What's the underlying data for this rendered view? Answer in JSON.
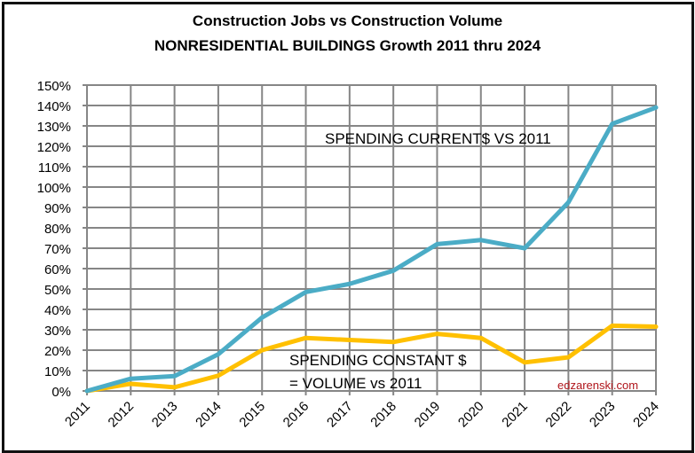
{
  "chart_data": {
    "type": "line",
    "title": "Construction Jobs vs Construction Volume",
    "subtitle": "NONRESIDENTIAL BUILDINGS Growth 2011 thru 2024",
    "xlabel": "",
    "ylabel": "",
    "x": [
      "2011",
      "2012",
      "2013",
      "2014",
      "2015",
      "2016",
      "2017",
      "2018",
      "2019",
      "2020",
      "2021",
      "2022",
      "2023",
      "2024"
    ],
    "ylim": [
      0,
      150
    ],
    "yticks": [
      "0%",
      "10%",
      "20%",
      "30%",
      "40%",
      "50%",
      "60%",
      "70%",
      "80%",
      "90%",
      "100%",
      "110%",
      "120%",
      "130%",
      "140%",
      "150%"
    ],
    "grid": true,
    "series": [
      {
        "name": "SPENDING CURRENT$ VS 2011",
        "color": "#4bacc6",
        "values": [
          0,
          6,
          7.3,
          18,
          36,
          48.5,
          52.5,
          59,
          72,
          74,
          70,
          92.5,
          131,
          139
        ]
      },
      {
        "name": "SPENDING CONSTANT $ = VOLUME vs 2011",
        "color": "#ffc000",
        "values": [
          0,
          3.5,
          1.8,
          7.5,
          20,
          26,
          25,
          24,
          28,
          26,
          14,
          16.5,
          32,
          31.5
        ]
      }
    ],
    "annotations": {
      "current": "SPENDING CURRENT$ VS 2011",
      "constant_line1": "SPENDING CONSTANT $",
      "constant_line2": "= VOLUME vs 2011",
      "watermark": "edzarenski.com"
    }
  }
}
